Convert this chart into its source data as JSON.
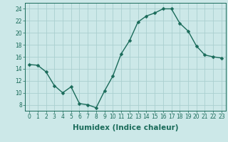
{
  "x": [
    0,
    1,
    2,
    3,
    4,
    5,
    6,
    7,
    8,
    9,
    10,
    11,
    12,
    13,
    14,
    15,
    16,
    17,
    18,
    19,
    20,
    21,
    22,
    23
  ],
  "y": [
    14.7,
    14.6,
    13.5,
    11.2,
    10.0,
    11.0,
    8.2,
    8.0,
    7.5,
    10.3,
    12.8,
    16.5,
    18.7,
    21.8,
    22.8,
    23.3,
    24.0,
    24.0,
    21.6,
    20.3,
    17.8,
    16.3,
    16.0,
    15.8
  ],
  "line_color": "#1a6b5a",
  "marker": "D",
  "markersize": 2.5,
  "linewidth": 1.0,
  "bg_color": "#cce8e8",
  "grid_color": "#aacfcf",
  "xlabel": "Humidex (Indice chaleur)",
  "xlim": [
    -0.5,
    23.5
  ],
  "ylim": [
    7,
    25
  ],
  "yticks": [
    8,
    10,
    12,
    14,
    16,
    18,
    20,
    22,
    24
  ],
  "xticks": [
    0,
    1,
    2,
    3,
    4,
    5,
    6,
    7,
    8,
    9,
    10,
    11,
    12,
    13,
    14,
    15,
    16,
    17,
    18,
    19,
    20,
    21,
    22,
    23
  ],
  "tick_fontsize": 5.5,
  "label_fontsize": 7.5
}
